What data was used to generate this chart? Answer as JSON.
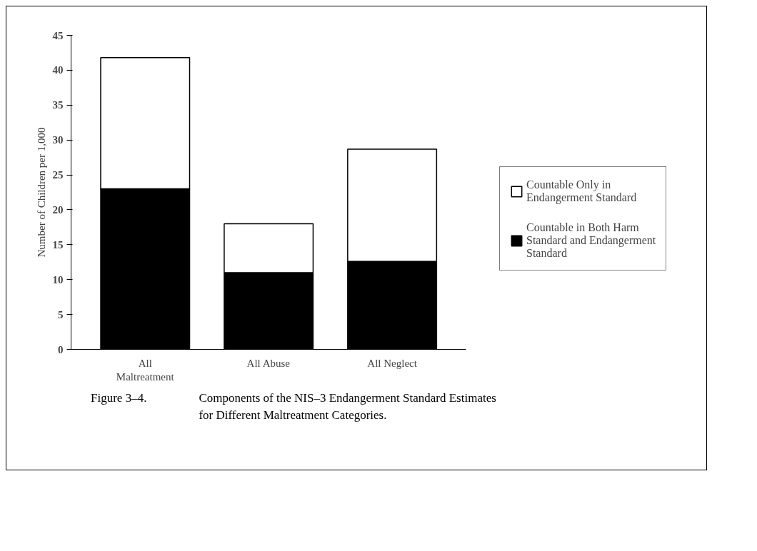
{
  "chart_data": {
    "type": "bar",
    "stacked": true,
    "ylabel": "Number of Children per 1,000",
    "categories": [
      "All Maltreatment",
      "All Abuse",
      "All Neglect"
    ],
    "series": [
      {
        "name": "Countable in Both Harm Standard and Endangerment Standard",
        "color": "#000000",
        "values": [
          23,
          11,
          12.6
        ]
      },
      {
        "name": "Countable Only in Endangerment Standard",
        "color": "#ffffff",
        "values": [
          18.8,
          7,
          16.1
        ]
      }
    ],
    "ylim": [
      0,
      45
    ],
    "yticks": [
      0,
      5,
      10,
      15,
      20,
      25,
      30,
      35,
      40,
      45
    ],
    "grid": false,
    "legend": "right",
    "annotations": [
      "Figure 3–4.",
      "Components of the NIS–3 Endangerment Standard Estimates for Different Maltreatment Categories."
    ]
  }
}
